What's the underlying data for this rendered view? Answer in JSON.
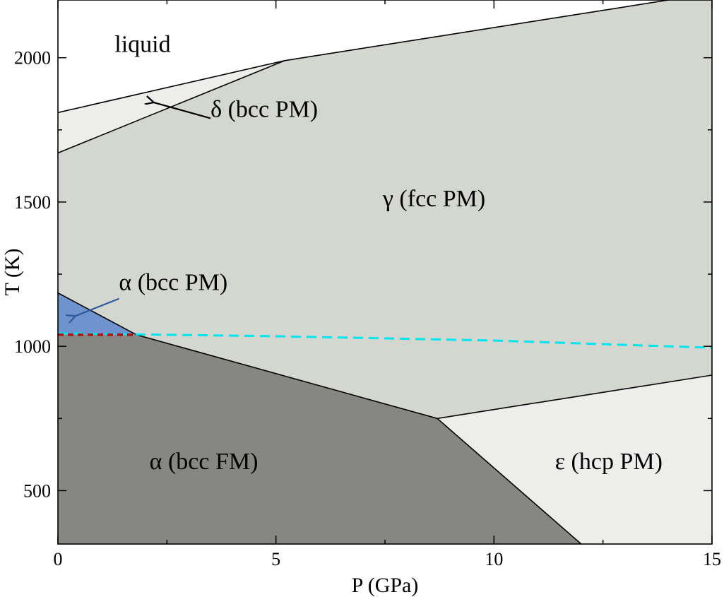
{
  "chart_data": {
    "type": "area",
    "xlabel": "P (GPa)",
    "ylabel": "T (K)",
    "xlim": [
      0,
      15
    ],
    "ylim": [
      315,
      2200
    ],
    "x_ticks": [
      0,
      5,
      10,
      15
    ],
    "y_ticks": [
      500,
      1000,
      1500,
      2000
    ],
    "x_minor_step": 2.5,
    "y_minor_step": 250,
    "grid": false,
    "regions": [
      {
        "name": "liquid",
        "label": "liquid",
        "color": "#ffffff",
        "points": [
          [
            0,
            2200
          ],
          [
            15,
            2200
          ],
          [
            14,
            2200
          ],
          [
            5.2,
            1990
          ],
          [
            0,
            1810
          ]
        ]
      },
      {
        "name": "delta",
        "label": "δ (bcc PM)",
        "color": "#ededec",
        "points": [
          [
            0,
            1810
          ],
          [
            5.2,
            1990
          ],
          [
            0,
            1670
          ]
        ]
      },
      {
        "name": "gamma",
        "label": "γ (fcc PM)",
        "color": "#d4d6d0",
        "points": [
          [
            0,
            1670
          ],
          [
            5.2,
            1990
          ],
          [
            14,
            2200
          ],
          [
            15,
            2200
          ],
          [
            15,
            900
          ],
          [
            8.7,
            750
          ],
          [
            1.8,
            1040
          ],
          [
            0,
            1185
          ]
        ]
      },
      {
        "name": "alpha-pm",
        "label": "α (bcc PM)",
        "color": "#6e93cf",
        "points": [
          [
            0,
            1185
          ],
          [
            1.8,
            1040
          ],
          [
            0,
            1040
          ]
        ]
      },
      {
        "name": "alpha-fm",
        "label": "α (bcc FM)",
        "color": "#868782",
        "points": [
          [
            0,
            1040
          ],
          [
            1.8,
            1040
          ],
          [
            8.7,
            750
          ],
          [
            12,
            315
          ],
          [
            0,
            315
          ]
        ]
      },
      {
        "name": "epsilon",
        "label": "ε (hcp PM)",
        "color": "#ededec",
        "points": [
          [
            8.7,
            750
          ],
          [
            15,
            900
          ],
          [
            15,
            315
          ],
          [
            12,
            315
          ]
        ]
      }
    ],
    "boundaries": [
      {
        "name": "liquid-line",
        "points": [
          [
            0,
            1810
          ],
          [
            5.2,
            1990
          ],
          [
            14,
            2200
          ]
        ]
      },
      {
        "name": "delta-gamma-line",
        "points": [
          [
            0,
            1670
          ],
          [
            5.2,
            1990
          ]
        ]
      },
      {
        "name": "alpha-gamma-line",
        "points": [
          [
            0,
            1185
          ],
          [
            1.8,
            1040
          ],
          [
            8.7,
            750
          ],
          [
            15,
            900
          ]
        ]
      },
      {
        "name": "alpha-epsilon-line",
        "points": [
          [
            8.7,
            750
          ],
          [
            12,
            315
          ]
        ]
      }
    ],
    "curie_line": {
      "name": "curie-line",
      "color": "#00e5ee",
      "points": [
        [
          0,
          1045
        ],
        [
          5,
          1035
        ],
        [
          10,
          1020
        ],
        [
          15,
          995
        ]
      ]
    },
    "curie_segment": {
      "name": "curie-segment",
      "color": "#b01010",
      "points": [
        [
          0,
          1040
        ],
        [
          1.8,
          1040
        ]
      ]
    },
    "labels": [
      {
        "id": "liquid",
        "text": "liquid",
        "x": 1.3,
        "y": 2020,
        "color": "#000000"
      },
      {
        "id": "delta",
        "text": "δ (bcc PM)",
        "x": 3.5,
        "y": 1795,
        "color": "#000000"
      },
      {
        "id": "gamma",
        "text": "γ (fcc PM)",
        "x": 7.45,
        "y": 1485,
        "color": "#000000"
      },
      {
        "id": "alpha-pm",
        "text": "α (bcc PM)",
        "x": 1.4,
        "y": 1195,
        "color": "#2c5aa0"
      },
      {
        "id": "alpha-fm",
        "text": "α (bcc FM)",
        "x": 2.1,
        "y": 575,
        "color": "#000000"
      },
      {
        "id": "epsilon",
        "text": "ε (hcp PM)",
        "x": 11.4,
        "y": 575,
        "color": "#000000"
      }
    ],
    "arrows": [
      {
        "name": "delta-arrow",
        "from": [
          3.5,
          1790
        ],
        "to": [
          2.2,
          1845
        ],
        "color": "#000000"
      },
      {
        "name": "alpha-pm-arrow",
        "from": [
          1.4,
          1165
        ],
        "to": [
          0.4,
          1105
        ],
        "color": "#2c5aa0"
      }
    ]
  }
}
